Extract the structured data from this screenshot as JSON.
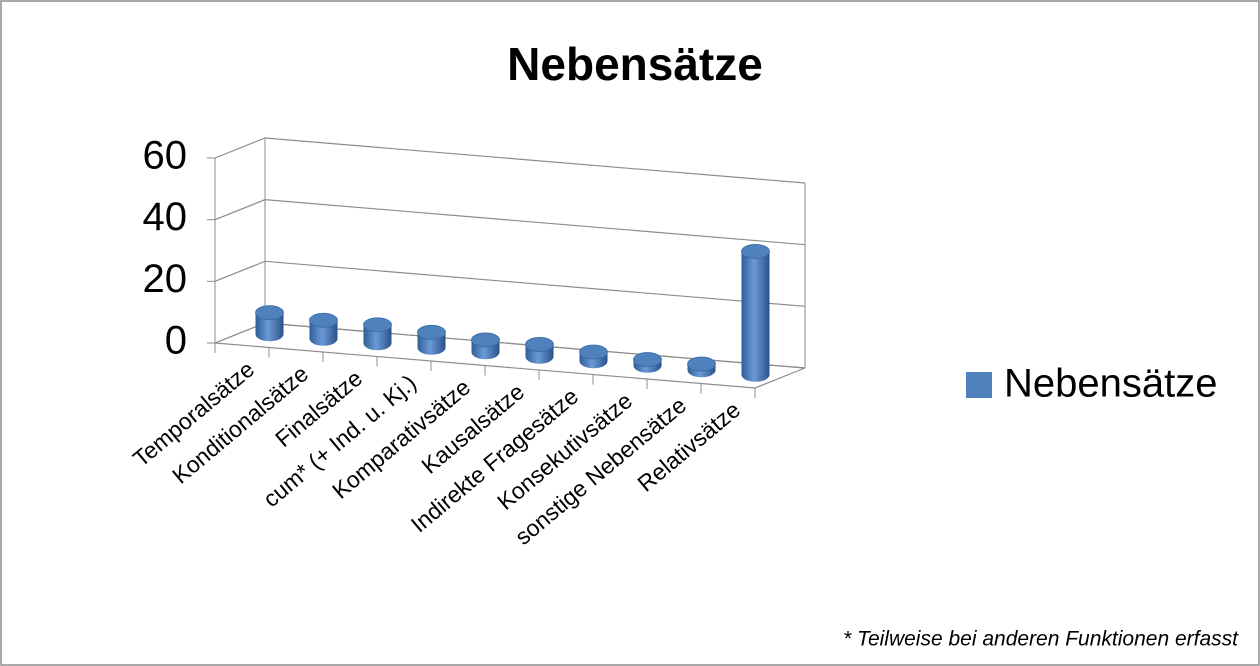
{
  "chart_data": {
    "type": "bar3d",
    "title": "Nebensätze",
    "categories": [
      "Temporalsätze",
      "Konditionalsätze",
      "Finalsätze",
      "cum* (+ Ind. u. Kj.)",
      "Komparativsätze",
      "Kausalsätze",
      "Indirekte Fragesätze",
      "Konsekutivsätze",
      "sonstige Nebensätze",
      "Relativsätze"
    ],
    "series": [
      {
        "name": "Nebensätze",
        "color": "#4f81bd",
        "values": [
          7,
          6,
          6,
          5,
          4,
          4,
          3,
          2,
          2,
          40
        ]
      }
    ],
    "ylim": [
      0,
      60
    ],
    "yticks": [
      0,
      20,
      40,
      60
    ],
    "grid": true,
    "legend": "right",
    "annotation": "* Teilweise bei anderen Funktionen erfasst"
  }
}
